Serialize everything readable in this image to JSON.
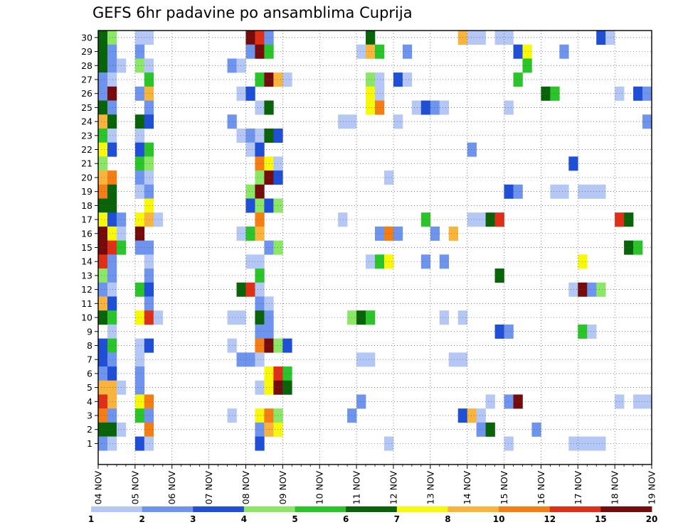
{
  "chart_data": {
    "type": "heatmap",
    "title": "GEFS 6hr padavine po ansamblima Cuprija",
    "xlabel": "",
    "ylabel": "",
    "x_tick_labels": [
      "04 NOV",
      "05 NOV",
      "06 NOV",
      "07 NOV",
      "08 NOV",
      "09 NOV",
      "10 NOV",
      "11 NOV",
      "12 NOV",
      "13 NOV",
      "14 NOV",
      "15 NOV",
      "16 NOV",
      "17 NOV",
      "18 NOV",
      "19 NOV"
    ],
    "y_tick_labels": [
      "1",
      "2",
      "3",
      "4",
      "5",
      "6",
      "7",
      "8",
      "9",
      "10",
      "11",
      "12",
      "13",
      "14",
      "15",
      "16",
      "17",
      "18",
      "19",
      "20",
      "21",
      "22",
      "23",
      "24",
      "25",
      "26",
      "27",
      "28",
      "29",
      "30"
    ],
    "xlim": [
      "04 NOV 00",
      "19 NOV 00"
    ],
    "ylim": [
      0,
      30
    ],
    "grid": true,
    "colorbar": {
      "labels": [
        "1",
        "2",
        "3",
        "4",
        "5",
        "6",
        "7",
        "8",
        "10",
        "12",
        "15",
        "20"
      ],
      "colors": [
        "#b4c7f5",
        "#6f94ee",
        "#1e4fd6",
        "#8ce767",
        "#2bc52b",
        "#096409",
        "#f8f80b",
        "#f9b43d",
        "#f47e13",
        "#df2f16",
        "#750b0b"
      ]
    },
    "members": [
      {
        "member": 30,
        "cells": [
          [
            0,
            6
          ],
          [
            1,
            4
          ],
          [
            4,
            1
          ],
          [
            5,
            1
          ],
          [
            16,
            11
          ],
          [
            17,
            10
          ],
          [
            18,
            2
          ],
          [
            29,
            6
          ],
          [
            39,
            8
          ],
          [
            40,
            1
          ],
          [
            41,
            1
          ],
          [
            43,
            1
          ],
          [
            44,
            1
          ],
          [
            54,
            3
          ],
          [
            55,
            1
          ]
        ]
      },
      {
        "member": 29,
        "cells": [
          [
            0,
            6
          ],
          [
            1,
            2
          ],
          [
            4,
            2
          ],
          [
            16,
            2
          ],
          [
            17,
            11
          ],
          [
            18,
            5
          ],
          [
            28,
            1
          ],
          [
            29,
            8
          ],
          [
            30,
            5
          ],
          [
            33,
            2
          ],
          [
            45,
            3
          ],
          [
            46,
            7
          ],
          [
            50,
            2
          ]
        ]
      },
      {
        "member": 28,
        "cells": [
          [
            0,
            6
          ],
          [
            1,
            2
          ],
          [
            2,
            1
          ],
          [
            4,
            4
          ],
          [
            5,
            1
          ],
          [
            14,
            2
          ],
          [
            15,
            1
          ],
          [
            46,
            5
          ]
        ]
      },
      {
        "member": 27,
        "cells": [
          [
            0,
            2
          ],
          [
            1,
            1
          ],
          [
            5,
            5
          ],
          [
            17,
            5
          ],
          [
            18,
            11
          ],
          [
            19,
            8
          ],
          [
            20,
            1
          ],
          [
            29,
            4
          ],
          [
            30,
            1
          ],
          [
            32,
            3
          ],
          [
            33,
            1
          ],
          [
            45,
            5
          ]
        ]
      },
      {
        "member": 26,
        "cells": [
          [
            0,
            2
          ],
          [
            1,
            11
          ],
          [
            4,
            2
          ],
          [
            5,
            8
          ],
          [
            15,
            1
          ],
          [
            16,
            3
          ],
          [
            29,
            7
          ],
          [
            30,
            1
          ],
          [
            48,
            6
          ],
          [
            49,
            5
          ],
          [
            56,
            1
          ],
          [
            58,
            3
          ],
          [
            59,
            2
          ]
        ]
      },
      {
        "member": 25,
        "cells": [
          [
            0,
            6
          ],
          [
            1,
            2
          ],
          [
            5,
            2
          ],
          [
            17,
            1
          ],
          [
            18,
            6
          ],
          [
            29,
            7
          ],
          [
            30,
            9
          ],
          [
            34,
            1
          ],
          [
            35,
            3
          ],
          [
            36,
            2
          ],
          [
            37,
            1
          ],
          [
            44,
            1
          ]
        ]
      },
      {
        "member": 24,
        "cells": [
          [
            0,
            8
          ],
          [
            1,
            6
          ],
          [
            4,
            6
          ],
          [
            5,
            3
          ],
          [
            14,
            2
          ],
          [
            26,
            1
          ],
          [
            27,
            1
          ],
          [
            32,
            1
          ],
          [
            59,
            2
          ]
        ]
      },
      {
        "member": 23,
        "cells": [
          [
            0,
            5
          ],
          [
            1,
            1
          ],
          [
            4,
            1
          ],
          [
            15,
            1
          ],
          [
            16,
            2
          ],
          [
            17,
            1
          ],
          [
            18,
            6
          ],
          [
            19,
            3
          ]
        ]
      },
      {
        "member": 22,
        "cells": [
          [
            0,
            7
          ],
          [
            1,
            3
          ],
          [
            4,
            3
          ],
          [
            5,
            5
          ],
          [
            16,
            1
          ],
          [
            17,
            3
          ],
          [
            40,
            2
          ]
        ]
      },
      {
        "member": 21,
        "cells": [
          [
            0,
            4
          ],
          [
            4,
            5
          ],
          [
            5,
            4
          ],
          [
            17,
            9
          ],
          [
            18,
            7
          ],
          [
            19,
            1
          ],
          [
            51,
            3
          ]
        ]
      },
      {
        "member": 20,
        "cells": [
          [
            0,
            8
          ],
          [
            1,
            9
          ],
          [
            4,
            2
          ],
          [
            5,
            1
          ],
          [
            17,
            4
          ],
          [
            18,
            11
          ],
          [
            19,
            3
          ],
          [
            31,
            1
          ]
        ]
      },
      {
        "member": 19,
        "cells": [
          [
            0,
            9
          ],
          [
            1,
            6
          ],
          [
            4,
            1
          ],
          [
            5,
            2
          ],
          [
            16,
            4
          ],
          [
            17,
            11
          ],
          [
            44,
            3
          ],
          [
            45,
            2
          ],
          [
            49,
            1
          ],
          [
            50,
            1
          ],
          [
            52,
            1
          ],
          [
            53,
            1
          ],
          [
            54,
            1
          ]
        ]
      },
      {
        "member": 18,
        "cells": [
          [
            0,
            6
          ],
          [
            1,
            6
          ],
          [
            5,
            7
          ],
          [
            16,
            3
          ],
          [
            17,
            4
          ],
          [
            18,
            3
          ],
          [
            19,
            4
          ]
        ]
      },
      {
        "member": 17,
        "cells": [
          [
            0,
            7
          ],
          [
            1,
            3
          ],
          [
            2,
            2
          ],
          [
            4,
            7
          ],
          [
            5,
            8
          ],
          [
            6,
            1
          ],
          [
            17,
            9
          ],
          [
            26,
            1
          ],
          [
            35,
            5
          ],
          [
            40,
            1
          ],
          [
            41,
            1
          ],
          [
            42,
            6
          ],
          [
            43,
            10
          ],
          [
            56,
            10
          ],
          [
            57,
            6
          ]
        ]
      },
      {
        "member": 16,
        "cells": [
          [
            0,
            11
          ],
          [
            1,
            7
          ],
          [
            2,
            1
          ],
          [
            4,
            11
          ],
          [
            15,
            1
          ],
          [
            16,
            5
          ],
          [
            17,
            8
          ],
          [
            30,
            2
          ],
          [
            31,
            9
          ],
          [
            32,
            2
          ],
          [
            36,
            2
          ],
          [
            38,
            8
          ]
        ]
      },
      {
        "member": 15,
        "cells": [
          [
            0,
            11
          ],
          [
            1,
            10
          ],
          [
            2,
            5
          ],
          [
            4,
            2
          ],
          [
            5,
            2
          ],
          [
            18,
            2
          ],
          [
            19,
            4
          ],
          [
            57,
            6
          ],
          [
            58,
            5
          ]
        ]
      },
      {
        "member": 14,
        "cells": [
          [
            0,
            10
          ],
          [
            1,
            2
          ],
          [
            5,
            1
          ],
          [
            16,
            1
          ],
          [
            17,
            1
          ],
          [
            29,
            1
          ],
          [
            30,
            5
          ],
          [
            31,
            7
          ],
          [
            35,
            2
          ],
          [
            37,
            2
          ],
          [
            52,
            7
          ]
        ]
      },
      {
        "member": 13,
        "cells": [
          [
            0,
            4
          ],
          [
            1,
            2
          ],
          [
            5,
            2
          ],
          [
            17,
            5
          ],
          [
            43,
            6
          ]
        ]
      },
      {
        "member": 12,
        "cells": [
          [
            0,
            2
          ],
          [
            1,
            1
          ],
          [
            4,
            5
          ],
          [
            5,
            3
          ],
          [
            15,
            6
          ],
          [
            16,
            10
          ],
          [
            17,
            1
          ],
          [
            51,
            1
          ],
          [
            52,
            11
          ],
          [
            53,
            2
          ],
          [
            54,
            4
          ]
        ]
      },
      {
        "member": 11,
        "cells": [
          [
            0,
            8
          ],
          [
            1,
            3
          ],
          [
            5,
            2
          ],
          [
            17,
            2
          ],
          [
            18,
            1
          ]
        ]
      },
      {
        "member": 10,
        "cells": [
          [
            0,
            6
          ],
          [
            1,
            5
          ],
          [
            4,
            7
          ],
          [
            5,
            10
          ],
          [
            6,
            1
          ],
          [
            14,
            1
          ],
          [
            15,
            1
          ],
          [
            17,
            6
          ],
          [
            18,
            2
          ],
          [
            27,
            4
          ],
          [
            28,
            6
          ],
          [
            29,
            5
          ],
          [
            37,
            1
          ],
          [
            39,
            1
          ]
        ]
      },
      {
        "member": 9,
        "cells": [
          [
            1,
            1
          ],
          [
            17,
            2
          ],
          [
            18,
            2
          ],
          [
            43,
            3
          ],
          [
            44,
            2
          ],
          [
            52,
            5
          ],
          [
            53,
            1
          ]
        ]
      },
      {
        "member": 8,
        "cells": [
          [
            0,
            3
          ],
          [
            1,
            5
          ],
          [
            4,
            1
          ],
          [
            5,
            3
          ],
          [
            14,
            1
          ],
          [
            17,
            9
          ],
          [
            18,
            11
          ],
          [
            19,
            4
          ],
          [
            20,
            3
          ]
        ]
      },
      {
        "member": 7,
        "cells": [
          [
            0,
            3
          ],
          [
            1,
            2
          ],
          [
            4,
            1
          ],
          [
            15,
            2
          ],
          [
            16,
            2
          ],
          [
            17,
            1
          ],
          [
            28,
            1
          ],
          [
            29,
            1
          ],
          [
            38,
            1
          ],
          [
            39,
            1
          ]
        ]
      },
      {
        "member": 6,
        "cells": [
          [
            0,
            2
          ],
          [
            1,
            3
          ],
          [
            4,
            2
          ],
          [
            18,
            7
          ],
          [
            19,
            10
          ],
          [
            20,
            5
          ]
        ]
      },
      {
        "member": 5,
        "cells": [
          [
            0,
            8
          ],
          [
            1,
            8
          ],
          [
            2,
            1
          ],
          [
            4,
            2
          ],
          [
            17,
            1
          ],
          [
            18,
            7
          ],
          [
            19,
            11
          ],
          [
            20,
            6
          ]
        ]
      },
      {
        "member": 4,
        "cells": [
          [
            0,
            10
          ],
          [
            1,
            8
          ],
          [
            4,
            7
          ],
          [
            5,
            9
          ],
          [
            28,
            2
          ],
          [
            42,
            1
          ],
          [
            44,
            2
          ],
          [
            45,
            11
          ],
          [
            56,
            1
          ],
          [
            58,
            1
          ],
          [
            59,
            1
          ]
        ]
      },
      {
        "member": 3,
        "cells": [
          [
            0,
            9
          ],
          [
            1,
            2
          ],
          [
            4,
            5
          ],
          [
            5,
            2
          ],
          [
            14,
            1
          ],
          [
            17,
            7
          ],
          [
            18,
            9
          ],
          [
            19,
            4
          ],
          [
            27,
            2
          ],
          [
            39,
            3
          ],
          [
            40,
            8
          ],
          [
            41,
            1
          ]
        ]
      },
      {
        "member": 2,
        "cells": [
          [
            0,
            6
          ],
          [
            1,
            6
          ],
          [
            2,
            1
          ],
          [
            5,
            9
          ],
          [
            17,
            2
          ],
          [
            18,
            8
          ],
          [
            19,
            7
          ],
          [
            41,
            2
          ],
          [
            42,
            6
          ],
          [
            47,
            2
          ]
        ]
      },
      {
        "member": 1,
        "cells": [
          [
            0,
            2
          ],
          [
            1,
            1
          ],
          [
            4,
            3
          ],
          [
            5,
            1
          ],
          [
            17,
            3
          ],
          [
            31,
            1
          ],
          [
            44,
            1
          ],
          [
            51,
            1
          ],
          [
            52,
            1
          ],
          [
            53,
            1
          ],
          [
            54,
            1
          ]
        ]
      }
    ]
  }
}
